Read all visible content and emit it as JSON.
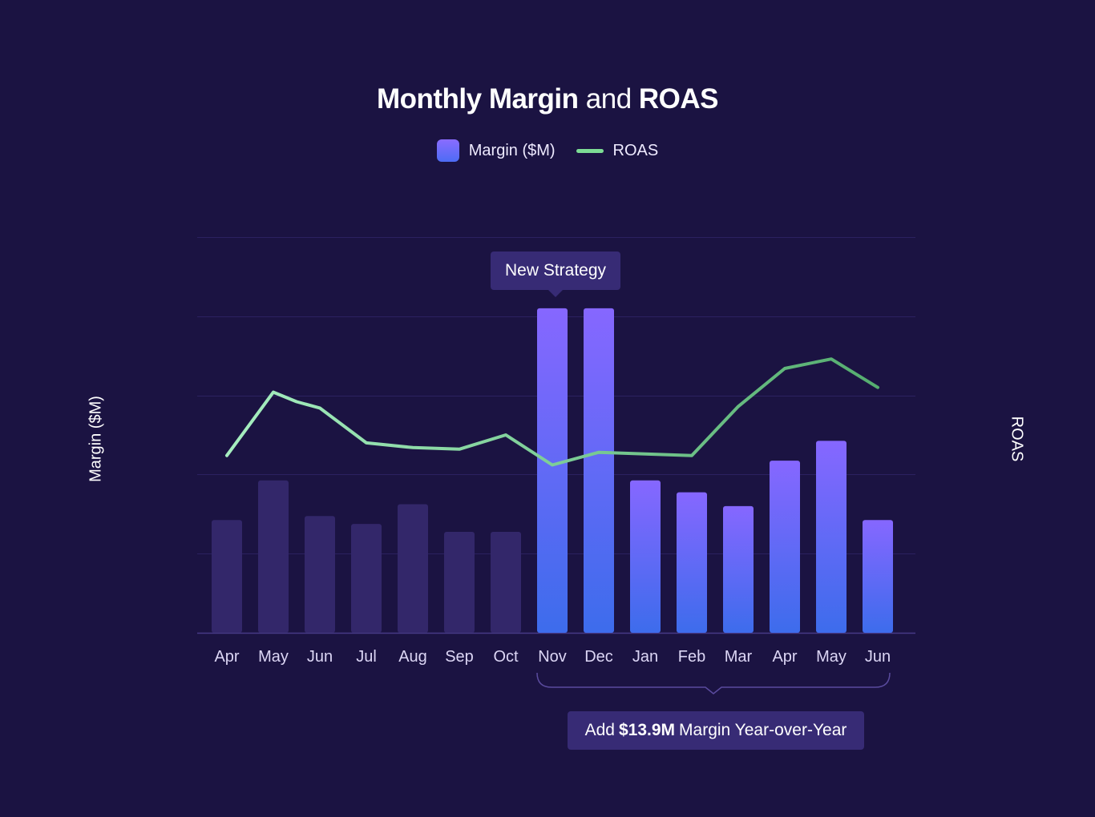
{
  "title": {
    "part1": "Monthly Margin",
    "part2": " and ",
    "part3": "ROAS"
  },
  "legend": {
    "margin_label": "Margin ($M)",
    "roas_label": "ROAS"
  },
  "colors": {
    "background": "#1b1342",
    "bar_muted": "#33276a",
    "bar_gradient_top": "#8667ff",
    "bar_gradient_bottom": "#3d6cec",
    "roas_line_start": "#a6eec0",
    "roas_line_end": "#55ad6f",
    "gridline": "#2b2160",
    "callout": "#372b75"
  },
  "annotations": {
    "top_callout": "New Strategy",
    "bottom_prefix": "Add",
    "bottom_value": "$13.9M",
    "bottom_suffix": "Margin Year-over-Year"
  },
  "chart_data": {
    "type": "bar",
    "categories": [
      "Apr",
      "May",
      "Jun",
      "Jul",
      "Aug",
      "Sep",
      "Oct",
      "Nov",
      "Dec",
      "Jan",
      "Feb",
      "Mar",
      "Apr",
      "May",
      "Jun"
    ],
    "series": [
      {
        "name": "Margin ($M)",
        "type": "bar",
        "axis": "left",
        "values": [
          2.85,
          3.85,
          2.95,
          2.75,
          3.25,
          2.55,
          2.55,
          8.2,
          8.2,
          3.85,
          3.55,
          3.2,
          4.35,
          4.85,
          2.85
        ],
        "highlight_from_index": 7
      },
      {
        "name": "ROAS",
        "type": "line",
        "axis": "right",
        "x": [
          0,
          1,
          1.5,
          2,
          3,
          4,
          5,
          6,
          7,
          8,
          9,
          10,
          11,
          12,
          13,
          14
        ],
        "values": [
          11.2,
          15.2,
          14.6,
          14.2,
          12.0,
          11.7,
          11.6,
          12.5,
          10.6,
          11.4,
          11.3,
          11.2,
          14.3,
          16.7,
          17.3,
          15.5
        ]
      }
    ],
    "xlabel": "",
    "ylabel": "Margin ($M)",
    "y2label": "ROAS",
    "ylim": [
      0,
      10
    ],
    "y2lim": [
      0,
      25
    ],
    "grid": true,
    "legend_position": "top-center"
  }
}
